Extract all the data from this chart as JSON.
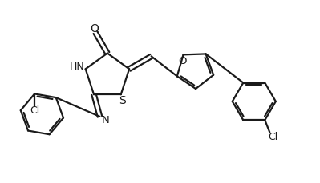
{
  "bg_color": "#ffffff",
  "line_color": "#1a1a1a",
  "line_width": 1.6,
  "figsize": [
    3.99,
    2.3
  ],
  "dpi": 100,
  "xlim": [
    0,
    10
  ],
  "ylim": [
    0,
    5.75
  ]
}
